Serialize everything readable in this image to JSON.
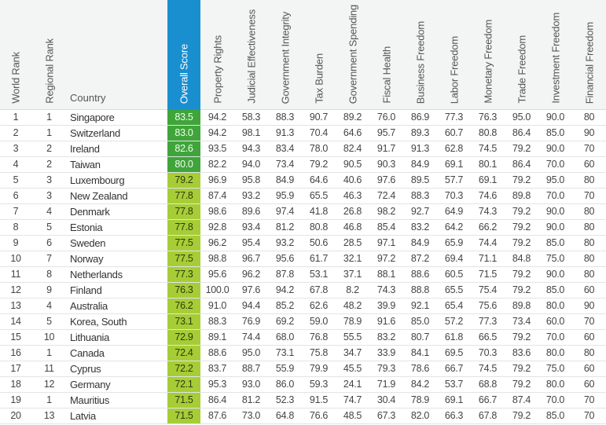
{
  "table": {
    "headers": {
      "world_rank": "World Rank",
      "regional_rank": "Regional Rank",
      "country": "Country",
      "overall_score": "Overall Score",
      "components": [
        "Property Rights",
        "Judicial Effectiveness",
        "Government Integrity",
        "Tax Burden",
        "Government Spending",
        "Fiscal Health",
        "Business Freedom",
        "Labor Freedom",
        "Monetary Freedom",
        "Trade Freedom",
        "Investment Freedom",
        "Financial Freedom"
      ]
    },
    "colors": {
      "header_bg": "#f3f4f4",
      "score_header_bg": "#1a8fd0",
      "score_80_plus": "#3fa53a",
      "score_70_to_80": "#a6cd36",
      "row_border": "#e2e4e5"
    },
    "rows": [
      {
        "world_rank": "1",
        "regional_rank": "1",
        "country": "Singapore",
        "score": "83.5",
        "band": "hi",
        "values": [
          "94.2",
          "58.3",
          "88.3",
          "90.7",
          "89.2",
          "76.0",
          "86.9",
          "77.3",
          "76.3",
          "95.0",
          "90.0",
          "80"
        ]
      },
      {
        "world_rank": "2",
        "regional_rank": "1",
        "country": "Switzerland",
        "score": "83.0",
        "band": "hi",
        "values": [
          "94.2",
          "98.1",
          "91.3",
          "70.4",
          "64.6",
          "95.7",
          "89.3",
          "60.7",
          "80.8",
          "86.4",
          "85.0",
          "90"
        ]
      },
      {
        "world_rank": "3",
        "regional_rank": "2",
        "country": "Ireland",
        "score": "82.6",
        "band": "hi",
        "values": [
          "93.5",
          "94.3",
          "83.4",
          "78.0",
          "82.4",
          "91.7",
          "91.3",
          "62.8",
          "74.5",
          "79.2",
          "90.0",
          "70"
        ]
      },
      {
        "world_rank": "4",
        "regional_rank": "2",
        "country": "Taiwan",
        "score": "80.0",
        "band": "hi",
        "values": [
          "82.2",
          "94.0",
          "73.4",
          "79.2",
          "90.5",
          "90.3",
          "84.9",
          "69.1",
          "80.1",
          "86.4",
          "70.0",
          "60"
        ]
      },
      {
        "world_rank": "5",
        "regional_rank": "3",
        "country": "Luxembourg",
        "score": "79.2",
        "band": "mid",
        "values": [
          "96.9",
          "95.8",
          "84.9",
          "64.6",
          "40.6",
          "97.6",
          "89.5",
          "57.7",
          "69.1",
          "79.2",
          "95.0",
          "80"
        ]
      },
      {
        "world_rank": "6",
        "regional_rank": "3",
        "country": "New Zealand",
        "score": "77.8",
        "band": "mid",
        "values": [
          "87.4",
          "93.2",
          "95.9",
          "65.5",
          "46.3",
          "72.4",
          "88.3",
          "70.3",
          "74.6",
          "89.8",
          "70.0",
          "70"
        ]
      },
      {
        "world_rank": "7",
        "regional_rank": "4",
        "country": "Denmark",
        "score": "77.8",
        "band": "mid",
        "values": [
          "98.6",
          "89.6",
          "97.4",
          "41.8",
          "26.8",
          "98.2",
          "92.7",
          "64.9",
          "74.3",
          "79.2",
          "90.0",
          "80"
        ]
      },
      {
        "world_rank": "8",
        "regional_rank": "5",
        "country": "Estonia",
        "score": "77.8",
        "band": "mid",
        "values": [
          "92.8",
          "93.4",
          "81.2",
          "80.8",
          "46.8",
          "85.4",
          "83.2",
          "64.2",
          "66.2",
          "79.2",
          "90.0",
          "80"
        ]
      },
      {
        "world_rank": "9",
        "regional_rank": "6",
        "country": "Sweden",
        "score": "77.5",
        "band": "mid",
        "values": [
          "96.2",
          "95.4",
          "93.2",
          "50.6",
          "28.5",
          "97.1",
          "84.9",
          "65.9",
          "74.4",
          "79.2",
          "85.0",
          "80"
        ]
      },
      {
        "world_rank": "10",
        "regional_rank": "7",
        "country": "Norway",
        "score": "77.5",
        "band": "mid",
        "values": [
          "98.8",
          "96.7",
          "95.6",
          "61.7",
          "32.1",
          "97.2",
          "87.2",
          "69.4",
          "71.1",
          "84.8",
          "75.0",
          "80"
        ]
      },
      {
        "world_rank": "11",
        "regional_rank": "8",
        "country": "Netherlands",
        "score": "77.3",
        "band": "mid",
        "values": [
          "95.6",
          "96.2",
          "87.8",
          "53.1",
          "37.1",
          "88.1",
          "88.6",
          "60.5",
          "71.5",
          "79.2",
          "90.0",
          "80"
        ]
      },
      {
        "world_rank": "12",
        "regional_rank": "9",
        "country": "Finland",
        "score": "76.3",
        "band": "mid",
        "values": [
          "100.0",
          "97.6",
          "94.2",
          "67.8",
          "8.2",
          "74.3",
          "88.8",
          "65.5",
          "75.4",
          "79.2",
          "85.0",
          "60"
        ]
      },
      {
        "world_rank": "13",
        "regional_rank": "4",
        "country": "Australia",
        "score": "76.2",
        "band": "mid",
        "values": [
          "91.0",
          "94.4",
          "85.2",
          "62.6",
          "48.2",
          "39.9",
          "92.1",
          "65.4",
          "75.6",
          "89.8",
          "80.0",
          "90"
        ]
      },
      {
        "world_rank": "14",
        "regional_rank": "5",
        "country": "Korea, South",
        "score": "73.1",
        "band": "mid",
        "values": [
          "88.3",
          "76.9",
          "69.2",
          "59.0",
          "78.9",
          "91.6",
          "85.0",
          "57.2",
          "77.3",
          "73.4",
          "60.0",
          "70"
        ]
      },
      {
        "world_rank": "15",
        "regional_rank": "10",
        "country": "Lithuania",
        "score": "72.9",
        "band": "mid",
        "values": [
          "89.1",
          "74.4",
          "68.0",
          "76.8",
          "55.5",
          "83.2",
          "80.7",
          "61.8",
          "66.5",
          "79.2",
          "70.0",
          "60"
        ]
      },
      {
        "world_rank": "16",
        "regional_rank": "1",
        "country": "Canada",
        "score": "72.4",
        "band": "mid",
        "values": [
          "88.6",
          "95.0",
          "73.1",
          "75.8",
          "34.7",
          "33.9",
          "84.1",
          "69.5",
          "70.3",
          "83.6",
          "80.0",
          "80"
        ]
      },
      {
        "world_rank": "17",
        "regional_rank": "11",
        "country": "Cyprus",
        "score": "72.2",
        "band": "mid",
        "values": [
          "83.7",
          "88.7",
          "55.9",
          "79.9",
          "45.5",
          "79.3",
          "78.6",
          "66.7",
          "74.5",
          "79.2",
          "75.0",
          "60"
        ]
      },
      {
        "world_rank": "18",
        "regional_rank": "12",
        "country": "Germany",
        "score": "72.1",
        "band": "mid",
        "values": [
          "95.3",
          "93.0",
          "86.0",
          "59.3",
          "24.1",
          "71.9",
          "84.2",
          "53.7",
          "68.8",
          "79.2",
          "80.0",
          "60"
        ]
      },
      {
        "world_rank": "19",
        "regional_rank": "1",
        "country": "Mauritius",
        "score": "71.5",
        "band": "mid",
        "values": [
          "86.4",
          "81.2",
          "52.3",
          "91.5",
          "74.7",
          "30.4",
          "78.9",
          "69.1",
          "66.7",
          "87.4",
          "70.0",
          "70"
        ]
      },
      {
        "world_rank": "20",
        "regional_rank": "13",
        "country": "Latvia",
        "score": "71.5",
        "band": "mid",
        "values": [
          "87.6",
          "73.0",
          "64.8",
          "76.6",
          "48.5",
          "67.3",
          "82.0",
          "66.3",
          "67.8",
          "79.2",
          "85.0",
          "70"
        ]
      }
    ]
  }
}
